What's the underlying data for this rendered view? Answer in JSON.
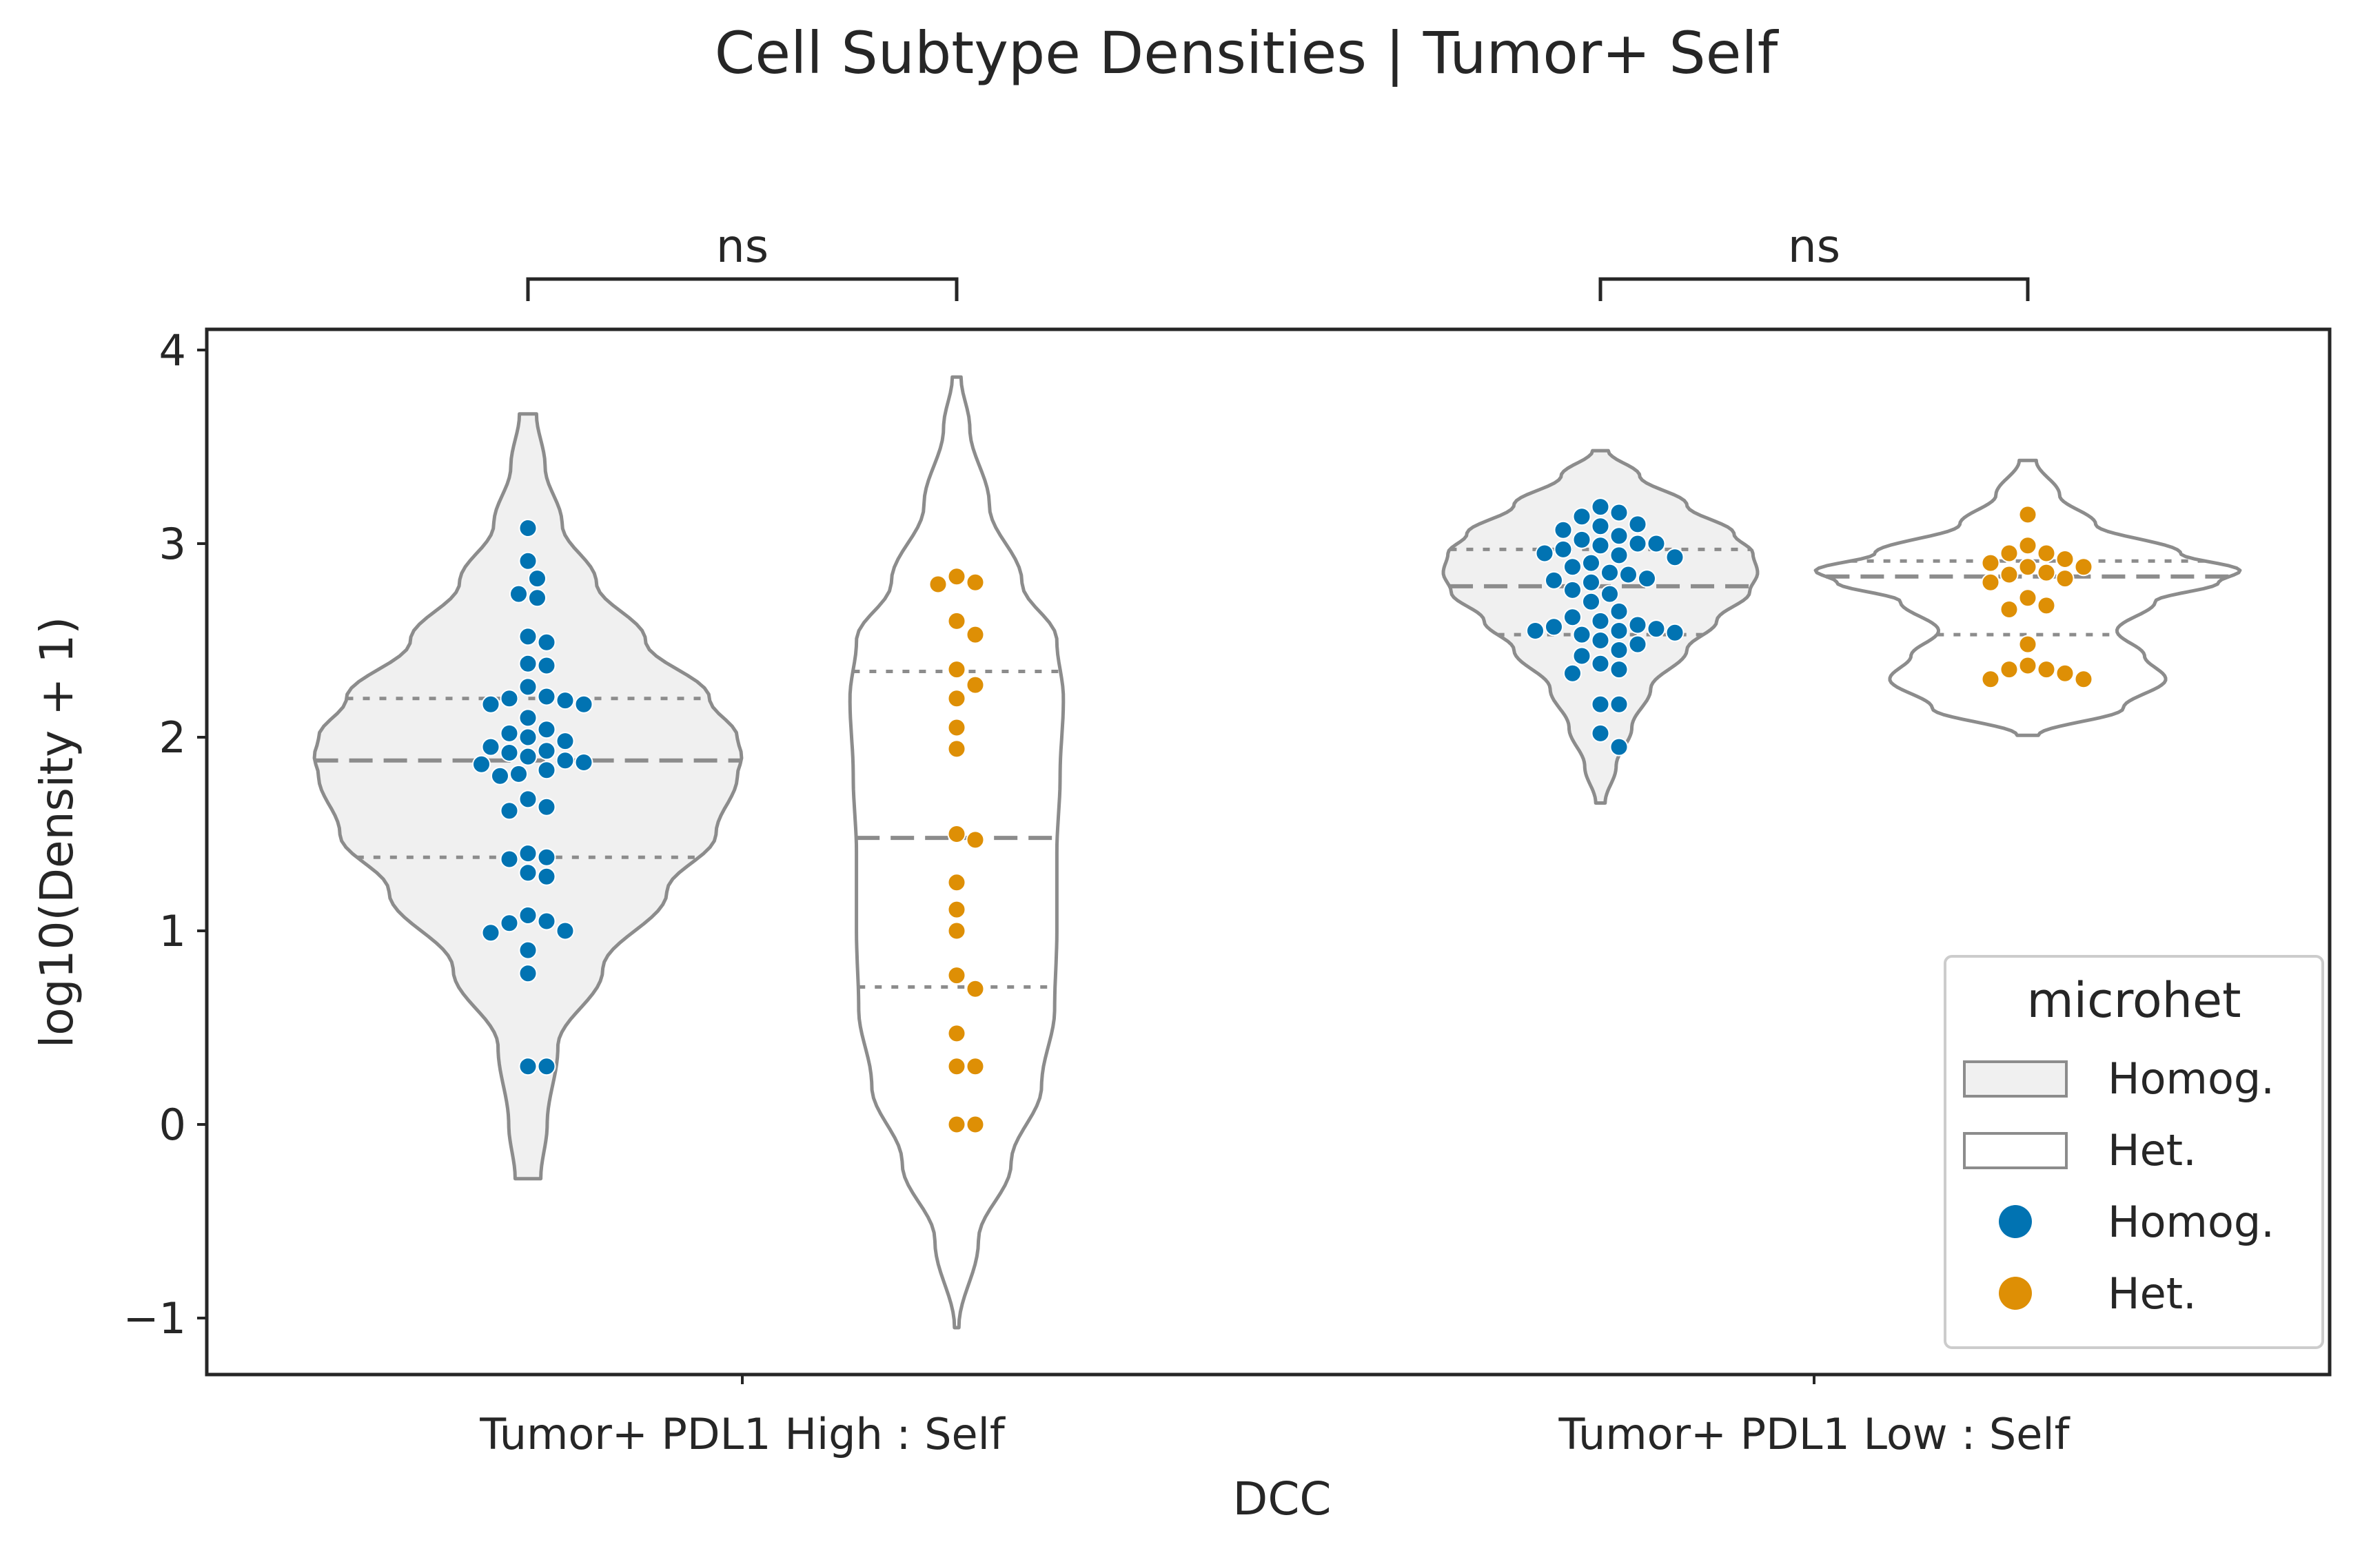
{
  "chart_data": {
    "type": "violin",
    "title": "Cell Subtype Densities | Tumor+ Self",
    "xlabel": "DCC",
    "ylabel": "log10(Density + 1)",
    "ylim": [
      -1.3,
      4.1
    ],
    "yticks": [
      {
        "value": -1,
        "label": "−1"
      },
      {
        "value": 0,
        "label": "0"
      },
      {
        "value": 1,
        "label": "1"
      },
      {
        "value": 2,
        "label": "2"
      },
      {
        "value": 3,
        "label": "3"
      },
      {
        "value": 4,
        "label": "4"
      }
    ],
    "categories": [
      "Tumor+ PDL1 High : Self",
      "Tumor+ PDL1 Low : Self"
    ],
    "grid": false,
    "legend": {
      "title": "microhet",
      "placement": "lower-right",
      "entries": [
        {
          "kind": "patch",
          "label": "Homog.",
          "fill": "#f0f0f0"
        },
        {
          "kind": "patch",
          "label": "Het.",
          "fill": "#ffffff"
        },
        {
          "kind": "dot",
          "label": "Homog.",
          "color": "#0173b2"
        },
        {
          "kind": "dot",
          "label": "Het.",
          "color": "#de8f05"
        }
      ]
    },
    "colors": {
      "homog_points": "#0173b2",
      "het_points": "#de8f05",
      "homog_fill": "#f0f0f0",
      "het_fill": "#ffffff",
      "violin_edge": "#8c8c8c"
    },
    "annotations": [
      {
        "text": "ns",
        "between": [
          "Homog.",
          "Het."
        ],
        "category": "Tumor+ PDL1 High : Self"
      },
      {
        "text": "ns",
        "between": [
          "Homog.",
          "Het."
        ],
        "category": "Tumor+ PDL1 Low : Self"
      }
    ],
    "series": [
      {
        "category": "Tumor+ PDL1 High : Self",
        "microhet": "Homog.",
        "color": "#0173b2",
        "fill": "#f0f0f0",
        "range": [
          -0.28,
          3.67
        ],
        "quartiles": [
          1.38,
          1.88,
          2.2
        ],
        "density": [
          [
            -0.28,
            0.06
          ],
          [
            0,
            0.09
          ],
          [
            0.4,
            0.14
          ],
          [
            0.8,
            0.35
          ],
          [
            1.2,
            0.65
          ],
          [
            1.5,
            0.88
          ],
          [
            1.8,
            0.98
          ],
          [
            1.9,
            1.0
          ],
          [
            2.0,
            0.98
          ],
          [
            2.2,
            0.85
          ],
          [
            2.5,
            0.55
          ],
          [
            2.8,
            0.32
          ],
          [
            3.1,
            0.16
          ],
          [
            3.4,
            0.08
          ],
          [
            3.67,
            0.04
          ]
        ],
        "values": [
          3.08,
          2.91,
          2.82,
          2.74,
          2.72,
          2.52,
          2.49,
          2.38,
          2.37,
          2.26,
          2.21,
          2.2,
          2.19,
          2.17,
          2.17,
          2.1,
          2.04,
          2.02,
          2.0,
          1.98,
          1.95,
          1.93,
          1.92,
          1.9,
          1.88,
          1.87,
          1.86,
          1.83,
          1.81,
          1.8,
          1.64,
          1.62,
          1.68,
          1.4,
          1.37,
          1.38,
          1.3,
          1.28,
          1.08,
          1.05,
          1.04,
          1.0,
          0.99,
          0.9,
          0.78,
          0.3,
          0.3
        ]
      },
      {
        "category": "Tumor+ PDL1 High : Self",
        "microhet": "Het.",
        "color": "#de8f05",
        "fill": "#ffffff",
        "range": [
          -1.05,
          3.86
        ],
        "quartiles": [
          0.71,
          1.48,
          2.34
        ],
        "density": [
          [
            -1.05,
            0.02
          ],
          [
            -0.6,
            0.2
          ],
          [
            -0.2,
            0.5
          ],
          [
            0.2,
            0.78
          ],
          [
            0.6,
            0.9
          ],
          [
            1.0,
            0.92
          ],
          [
            1.4,
            0.92
          ],
          [
            1.8,
            0.95
          ],
          [
            2.2,
            0.98
          ],
          [
            2.5,
            0.92
          ],
          [
            2.8,
            0.6
          ],
          [
            3.2,
            0.3
          ],
          [
            3.6,
            0.12
          ],
          [
            3.86,
            0.04
          ]
        ],
        "values": [
          2.83,
          2.79,
          2.8,
          2.6,
          2.53,
          2.35,
          2.27,
          2.2,
          2.05,
          1.94,
          1.5,
          1.47,
          1.25,
          1.11,
          1.0,
          0.77,
          0.7,
          0.47,
          0.3,
          0.3,
          0.0,
          0.0
        ]
      },
      {
        "category": "Tumor+ PDL1 Low : Self",
        "microhet": "Homog.",
        "color": "#0173b2",
        "fill": "#f0f0f0",
        "range": [
          1.66,
          3.48
        ],
        "quartiles": [
          2.53,
          2.78,
          2.97
        ],
        "density": [
          [
            1.66,
            0.03
          ],
          [
            1.85,
            0.1
          ],
          [
            2.05,
            0.2
          ],
          [
            2.25,
            0.32
          ],
          [
            2.45,
            0.55
          ],
          [
            2.6,
            0.74
          ],
          [
            2.75,
            0.95
          ],
          [
            2.85,
            1.0
          ],
          [
            2.95,
            0.97
          ],
          [
            3.05,
            0.85
          ],
          [
            3.2,
            0.55
          ],
          [
            3.35,
            0.25
          ],
          [
            3.48,
            0.05
          ]
        ],
        "values": [
          3.19,
          3.16,
          3.14,
          3.1,
          3.09,
          3.07,
          3.04,
          3.02,
          3.0,
          3.0,
          2.99,
          2.97,
          2.95,
          2.94,
          2.93,
          2.9,
          2.88,
          2.85,
          2.84,
          2.82,
          2.81,
          2.8,
          2.76,
          2.74,
          2.7,
          2.65,
          2.62,
          2.6,
          2.58,
          2.57,
          2.56,
          2.55,
          2.55,
          2.54,
          2.53,
          2.5,
          2.48,
          2.45,
          2.42,
          2.38,
          2.35,
          2.33,
          2.17,
          2.17,
          2.02,
          1.95
        ]
      },
      {
        "category": "Tumor+ PDL1 Low : Self",
        "microhet": "Het.",
        "color": "#de8f05",
        "fill": "#ffffff",
        "range": [
          2.01,
          3.43
        ],
        "quartiles": [
          2.53,
          2.83,
          2.91
        ],
        "density": [
          [
            2.01,
            0.05
          ],
          [
            2.15,
            0.45
          ],
          [
            2.3,
            0.65
          ],
          [
            2.42,
            0.55
          ],
          [
            2.55,
            0.42
          ],
          [
            2.7,
            0.6
          ],
          [
            2.8,
            0.9
          ],
          [
            2.86,
            1.0
          ],
          [
            2.95,
            0.72
          ],
          [
            3.1,
            0.32
          ],
          [
            3.25,
            0.15
          ],
          [
            3.43,
            0.04
          ]
        ],
        "values": [
          3.15,
          2.99,
          2.95,
          2.95,
          2.92,
          2.9,
          2.88,
          2.88,
          2.85,
          2.84,
          2.82,
          2.8,
          2.72,
          2.68,
          2.66,
          2.48,
          2.37,
          2.35,
          2.35,
          2.33,
          2.3,
          2.3
        ]
      }
    ]
  }
}
